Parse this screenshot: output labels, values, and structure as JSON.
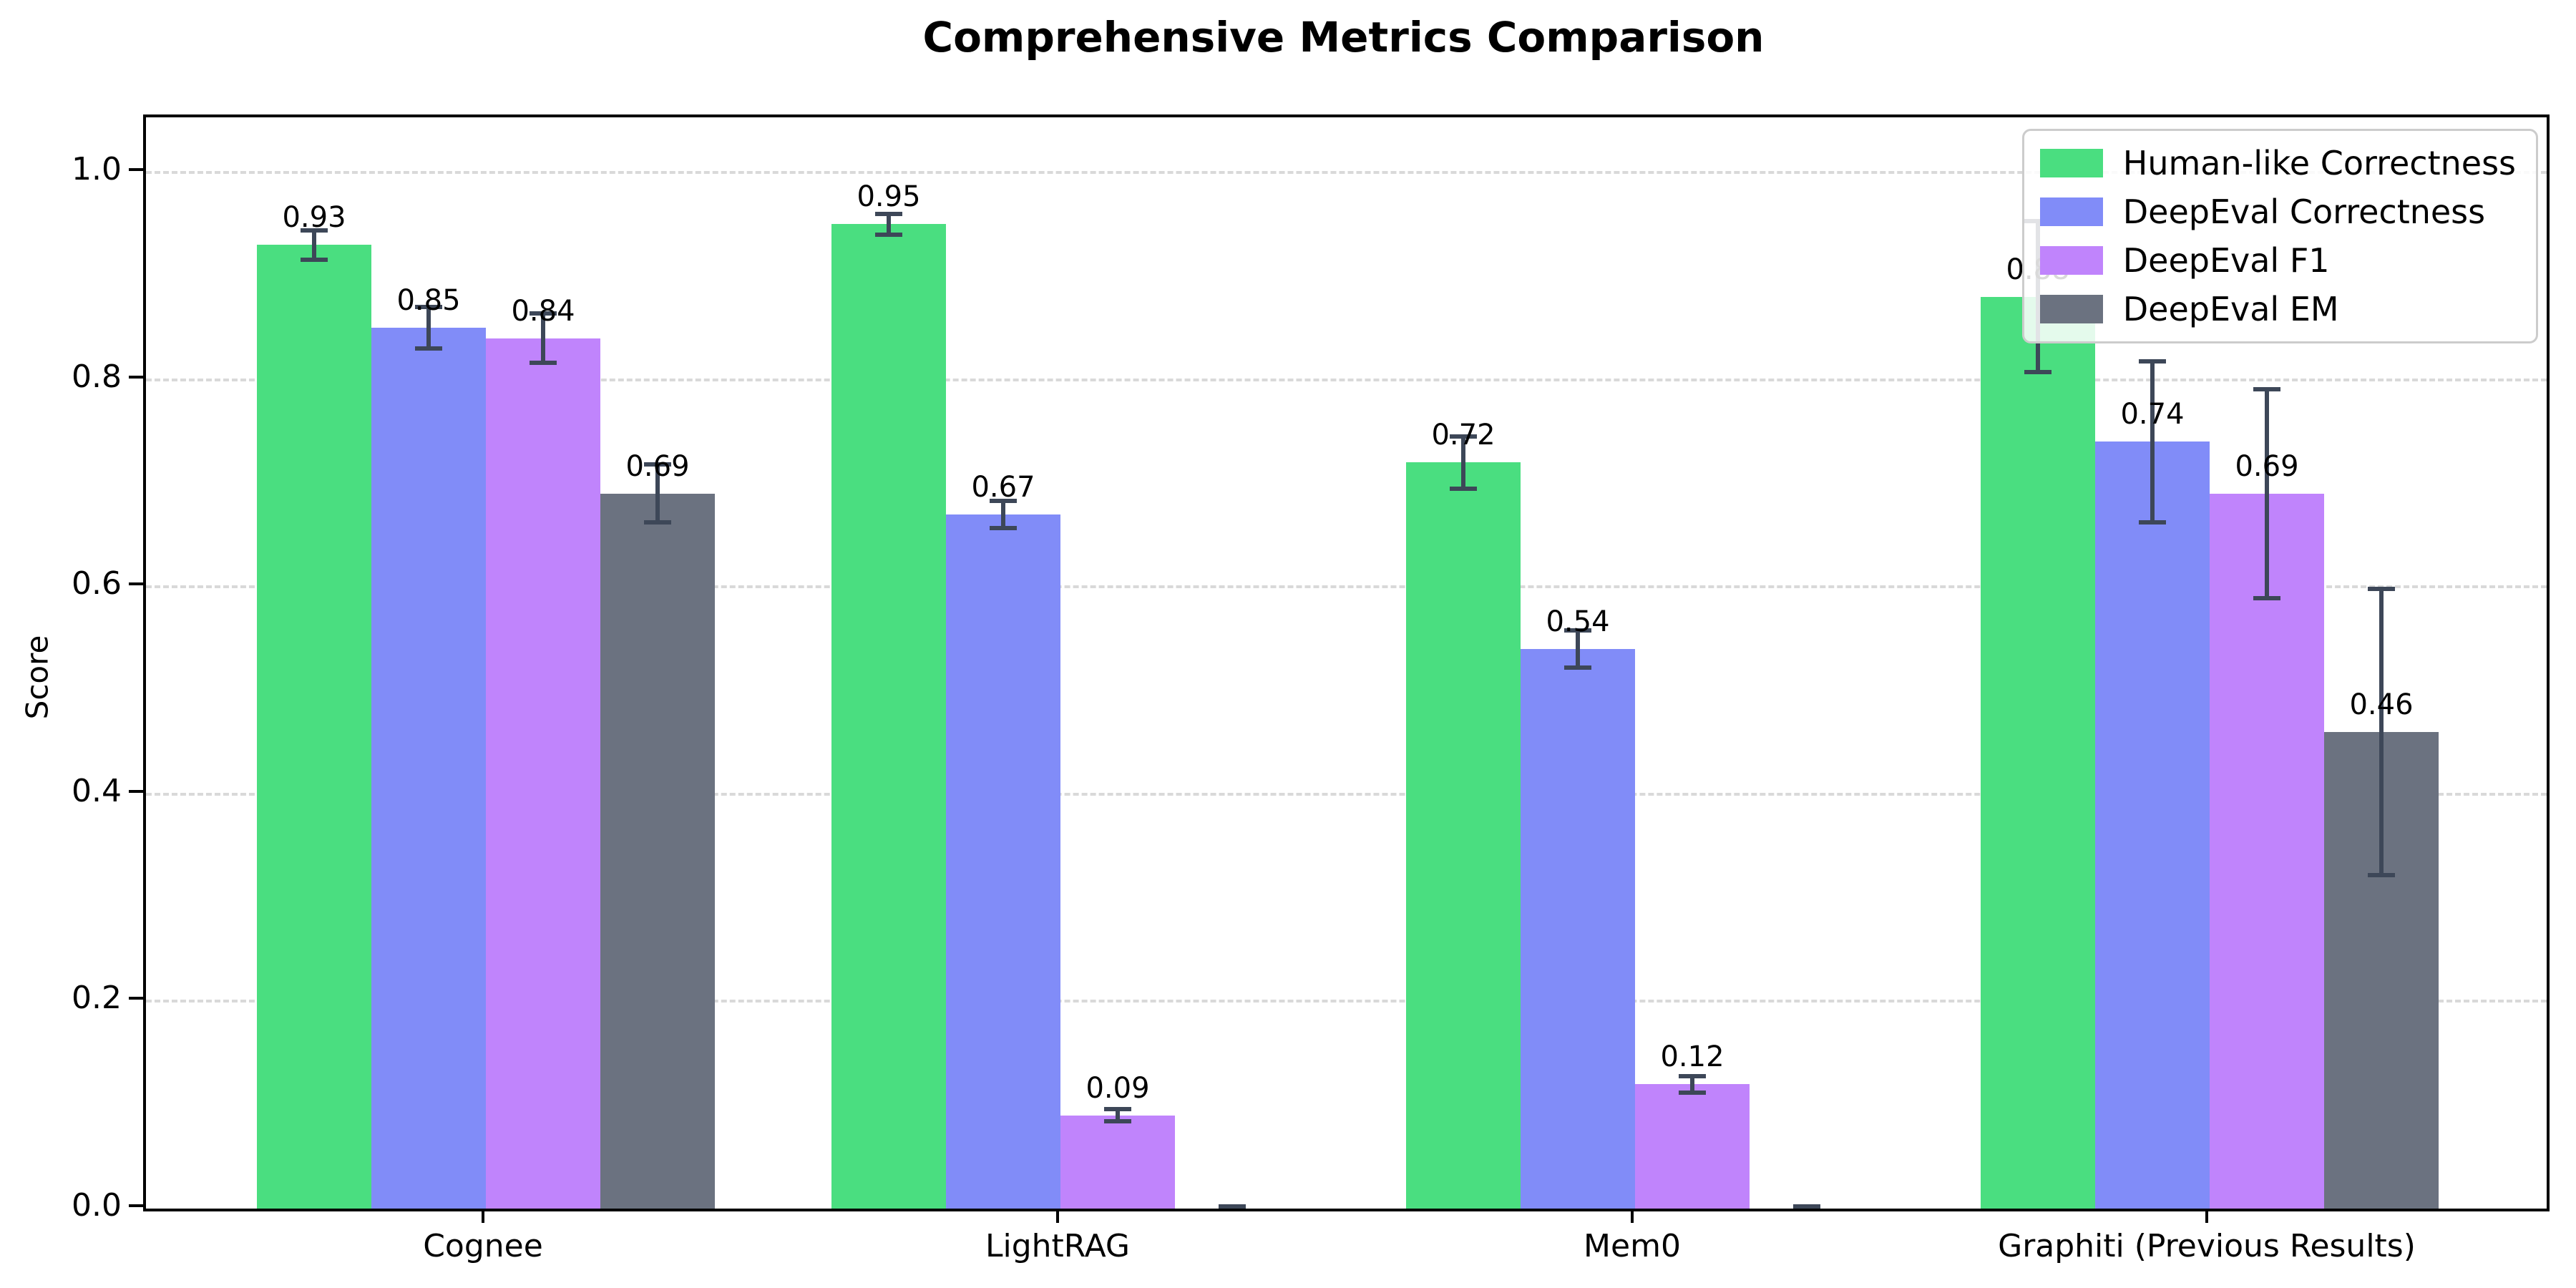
{
  "title": "Comprehensive Metrics Comparison",
  "chart_data": {
    "type": "bar",
    "title": "Comprehensive Metrics Comparison",
    "xlabel": "",
    "ylabel": "Score",
    "ylim": [
      0.0,
      1.05
    ],
    "yticks": [
      "0.0",
      "0.2",
      "0.4",
      "0.6",
      "0.8",
      "1.0"
    ],
    "grid": "horizontal dashed gridlines at each y tick",
    "legend_position": "upper right",
    "categories": [
      "Cognee",
      "LightRAG",
      "Mem0",
      "Graphiti (Previous Results)"
    ],
    "series": [
      {
        "name": "Human-like Correctness",
        "color": "#4ade80",
        "values": [
          0.93,
          0.95,
          0.72,
          0.88
        ],
        "errors": [
          0.016,
          0.012,
          0.027,
          0.075
        ],
        "labels": [
          "0.93",
          "0.95",
          "0.72",
          "0.88"
        ]
      },
      {
        "name": "DeepEval Correctness",
        "color": "#818cf8",
        "values": [
          0.85,
          0.67,
          0.54,
          0.74
        ],
        "errors": [
          0.022,
          0.015,
          0.02,
          0.08
        ],
        "labels": [
          "0.85",
          "0.67",
          "0.54",
          "0.74"
        ]
      },
      {
        "name": "DeepEval F1",
        "color": "#c084fc",
        "values": [
          0.84,
          0.09,
          0.12,
          0.69
        ],
        "errors": [
          0.026,
          0.008,
          0.01,
          0.103
        ],
        "labels": [
          "0.84",
          "0.09",
          "0.12",
          "0.69"
        ]
      },
      {
        "name": "DeepEval EM",
        "color": "#6b7280",
        "values": [
          0.69,
          0.0,
          0.0,
          0.46
        ],
        "errors": [
          0.03,
          0.004,
          0.004,
          0.14
        ],
        "labels": [
          "0.69",
          "",
          "",
          "0.46"
        ]
      }
    ],
    "error_bar_color": "#3d4758",
    "gridline_color": "#d9d9d9"
  }
}
